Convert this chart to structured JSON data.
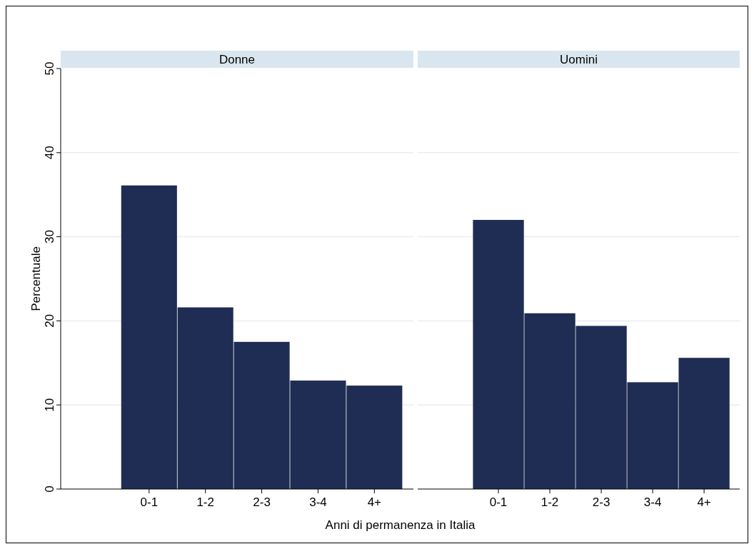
{
  "chart_data": [
    {
      "type": "bar",
      "title": "Donne",
      "xlabel": "Anni di permanenza in Italia",
      "ylabel": "Percentuale",
      "categories": [
        "0-1",
        "1-2",
        "2-3",
        "3-4",
        "4+"
      ],
      "values": [
        36.1,
        21.6,
        17.5,
        12.9,
        12.3
      ],
      "color": "#1f2d54",
      "ylim": [
        0,
        50
      ],
      "yticks": [
        0,
        10,
        20,
        30,
        40,
        50
      ],
      "grid": "y"
    },
    {
      "type": "bar",
      "title": "Uomini",
      "categories": [
        "0-1",
        "1-2",
        "2-3",
        "3-4",
        "4+"
      ],
      "values": [
        32.0,
        20.9,
        19.4,
        12.7,
        15.6
      ],
      "color": "#1f2d54",
      "ylim": [
        0,
        50
      ],
      "yticks": [
        0,
        10,
        20,
        30,
        40,
        50
      ],
      "grid": "y",
      "tick_labels": "x"
    }
  ]
}
